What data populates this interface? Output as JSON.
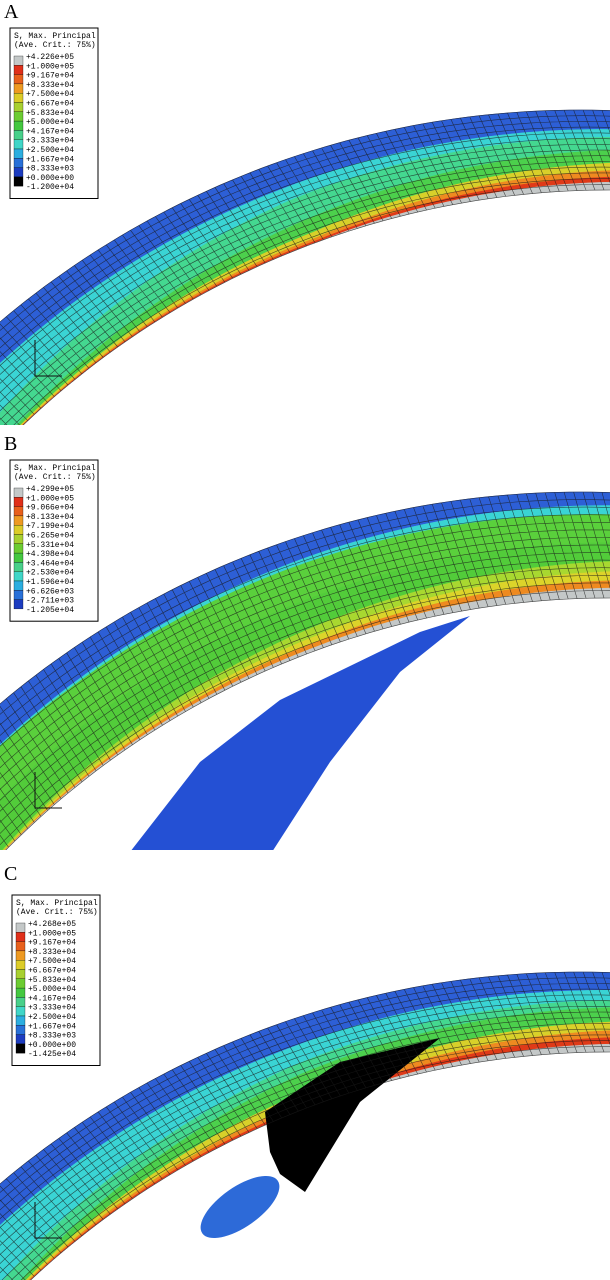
{
  "panels": [
    {
      "label": "A",
      "legend": {
        "title": [
          "S, Max. Principal",
          "(Ave. Crit.: 75%)"
        ],
        "values": [
          "+4.226e+05",
          "+1.000e+05",
          "+9.167e+04",
          "+8.333e+04",
          "+7.500e+04",
          "+6.667e+04",
          "+5.833e+04",
          "+5.000e+04",
          "+4.167e+04",
          "+3.333e+04",
          "+2.500e+04",
          "+1.667e+04",
          "+8.333e+03",
          "+0.000e+00",
          "-1.200e+04"
        ],
        "colors": [
          "#c4c8c8",
          "#e0301a",
          "#e8601c",
          "#ee9a22",
          "#dccc28",
          "#a8d030",
          "#6ccc32",
          "#44c840",
          "#48d08a",
          "#40d6c8",
          "#2caee0",
          "#2870d8",
          "#1c3cc0",
          "#000000"
        ]
      }
    },
    {
      "label": "B",
      "legend": {
        "title": [
          "S, Max. Principal",
          "(Ave. Crit.: 75%)"
        ],
        "values": [
          "+4.299e+05",
          "+1.000e+05",
          "+9.066e+04",
          "+8.133e+04",
          "+7.199e+04",
          "+6.265e+04",
          "+5.331e+04",
          "+4.398e+04",
          "+3.464e+04",
          "+2.530e+04",
          "+1.596e+04",
          "+6.626e+03",
          "-2.711e+03",
          "-1.205e+04"
        ],
        "colors": [
          "#c4c8c8",
          "#e0301a",
          "#e8601c",
          "#ee9a22",
          "#dccc28",
          "#a8d030",
          "#6ccc32",
          "#44c840",
          "#48d08a",
          "#40d6c8",
          "#2caee0",
          "#2870d8",
          "#1c3cc0"
        ]
      }
    },
    {
      "label": "C",
      "legend": {
        "title": [
          "S, Max. Principal",
          "(Ave. Crit.: 75%)"
        ],
        "values": [
          "+4.268e+05",
          "+1.000e+05",
          "+9.167e+04",
          "+8.333e+04",
          "+7.500e+04",
          "+6.667e+04",
          "+5.833e+04",
          "+5.000e+04",
          "+4.167e+04",
          "+3.333e+04",
          "+2.500e+04",
          "+1.667e+04",
          "+8.333e+03",
          "+0.000e+00",
          "-1.425e+04"
        ],
        "colors": [
          "#c4c8c8",
          "#e0301a",
          "#e8601c",
          "#ee9a22",
          "#dccc28",
          "#a8d030",
          "#6ccc32",
          "#44c840",
          "#48d08a",
          "#40d6c8",
          "#2caee0",
          "#2870d8",
          "#1c3cc0",
          "#000000"
        ]
      }
    }
  ]
}
